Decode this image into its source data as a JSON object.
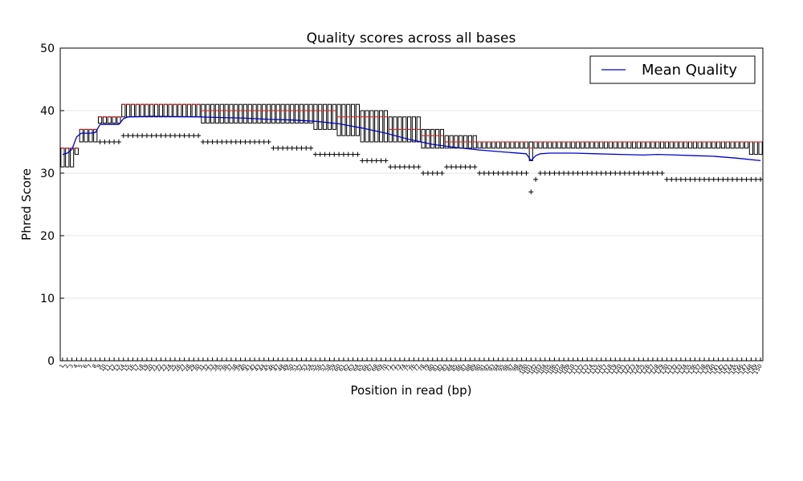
{
  "chart_data": {
    "type": "boxplot",
    "title": "Quality scores across all bases",
    "xlabel": "Position in read (bp)",
    "ylabel": "Phred Score",
    "ylim": [
      0,
      50
    ],
    "yticks": [
      0,
      10,
      20,
      30,
      40,
      50
    ],
    "grid": true,
    "legend": {
      "placement": "top-right",
      "entries": [
        "Mean Quality"
      ]
    },
    "colors": {
      "mean": "#0000cc",
      "median": "#ff0000",
      "box": "#000000"
    },
    "positions": [
      1,
      2,
      3,
      4,
      5,
      6,
      7,
      8,
      9,
      10,
      11,
      12,
      13,
      14,
      15,
      16,
      17,
      18,
      19,
      20,
      21,
      22,
      23,
      24,
      25,
      26,
      27,
      28,
      29,
      30,
      31,
      32,
      33,
      34,
      35,
      36,
      37,
      38,
      39,
      40,
      41,
      42,
      43,
      44,
      45,
      46,
      47,
      48,
      49,
      50,
      51,
      52,
      53,
      54,
      55,
      56,
      57,
      58,
      59,
      60,
      61,
      62,
      63,
      64,
      65,
      66,
      67,
      68,
      69,
      70,
      71,
      72,
      73,
      74,
      75,
      76,
      77,
      78,
      79,
      80,
      81,
      82,
      83,
      84,
      85,
      86,
      87,
      88,
      89,
      90,
      91,
      92,
      93,
      94,
      95,
      96,
      97,
      98,
      99,
      100,
      101,
      102,
      103,
      104,
      105,
      106,
      107,
      108,
      109,
      110,
      111,
      112,
      113,
      114,
      115,
      116,
      117,
      118,
      119,
      120,
      121,
      122,
      123,
      124,
      125,
      126,
      127,
      128,
      129,
      130,
      131,
      132,
      133,
      134,
      135,
      136,
      137,
      138,
      139,
      140,
      141,
      142,
      143,
      144,
      145,
      146,
      147,
      148,
      149,
      150
    ],
    "segments": [
      {
        "from": 1,
        "to": 3,
        "q1": 31,
        "median": 34,
        "q3": 34,
        "outlier": null
      },
      {
        "from": 4,
        "to": 4,
        "q1": 33,
        "median": 34,
        "q3": 34,
        "outlier": null
      },
      {
        "from": 5,
        "to": 8,
        "q1": 35,
        "median": 37,
        "q3": 37,
        "outlier": null
      },
      {
        "from": 9,
        "to": 13,
        "q1": 38,
        "median": 39,
        "q3": 39,
        "outlier": 35
      },
      {
        "from": 14,
        "to": 30,
        "q1": 39,
        "median": 41,
        "q3": 41,
        "outlier": 36
      },
      {
        "from": 31,
        "to": 45,
        "q1": 38,
        "median": 40,
        "q3": 41,
        "outlier": 35
      },
      {
        "from": 46,
        "to": 54,
        "q1": 38,
        "median": 40,
        "q3": 41,
        "outlier": 34
      },
      {
        "from": 55,
        "to": 59,
        "q1": 37,
        "median": 40,
        "q3": 41,
        "outlier": 33
      },
      {
        "from": 60,
        "to": 64,
        "q1": 36,
        "median": 39,
        "q3": 41,
        "outlier": 33
      },
      {
        "from": 65,
        "to": 70,
        "q1": 35,
        "median": 39,
        "q3": 40,
        "outlier": 32
      },
      {
        "from": 71,
        "to": 77,
        "q1": 35,
        "median": 37,
        "q3": 39,
        "outlier": 31
      },
      {
        "from": 78,
        "to": 82,
        "q1": 34,
        "median": 36,
        "q3": 37,
        "outlier": 30
      },
      {
        "from": 83,
        "to": 89,
        "q1": 34,
        "median": 35,
        "q3": 36,
        "outlier": 31
      },
      {
        "from": 90,
        "to": 96,
        "q1": 34,
        "median": 35,
        "q3": 35,
        "outlier": 30
      },
      {
        "from": 97,
        "to": 100,
        "q1": 34,
        "median": 35,
        "q3": 35,
        "outlier": 30
      },
      {
        "from": 101,
        "to": 101,
        "q1": 32,
        "median": 34,
        "q3": 35,
        "outlier": 27
      },
      {
        "from": 102,
        "to": 102,
        "q1": 34,
        "median": 35,
        "q3": 35,
        "outlier": 29
      },
      {
        "from": 103,
        "to": 129,
        "q1": 34,
        "median": 35,
        "q3": 35,
        "outlier": 30
      },
      {
        "from": 130,
        "to": 147,
        "q1": 34,
        "median": 35,
        "q3": 35,
        "outlier": 29
      },
      {
        "from": 148,
        "to": 150,
        "q1": 33,
        "median": 35,
        "q3": 35,
        "outlier": 29
      }
    ],
    "mean_curve": [
      [
        1,
        33.0
      ],
      [
        2,
        33.2
      ],
      [
        3,
        33.8
      ],
      [
        4,
        35.8
      ],
      [
        5,
        36.4
      ],
      [
        6,
        36.4
      ],
      [
        7,
        36.4
      ],
      [
        8,
        36.5
      ],
      [
        9,
        37.8
      ],
      [
        10,
        37.8
      ],
      [
        12,
        37.8
      ],
      [
        13,
        37.8
      ],
      [
        14,
        38.7
      ],
      [
        15,
        39.0
      ],
      [
        20,
        39.1
      ],
      [
        30,
        39.0
      ],
      [
        35,
        38.9
      ],
      [
        40,
        38.8
      ],
      [
        45,
        38.6
      ],
      [
        50,
        38.5
      ],
      [
        55,
        38.3
      ],
      [
        60,
        37.9
      ],
      [
        65,
        37.2
      ],
      [
        70,
        36.4
      ],
      [
        75,
        35.4
      ],
      [
        80,
        34.6
      ],
      [
        85,
        34.1
      ],
      [
        90,
        33.7
      ],
      [
        95,
        33.4
      ],
      [
        100,
        33.1
      ],
      [
        101,
        32.0
      ],
      [
        102,
        32.8
      ],
      [
        103,
        33.1
      ],
      [
        105,
        33.2
      ],
      [
        110,
        33.2
      ],
      [
        115,
        33.1
      ],
      [
        120,
        33.0
      ],
      [
        125,
        32.9
      ],
      [
        128,
        33.0
      ],
      [
        132,
        32.9
      ],
      [
        136,
        32.8
      ],
      [
        140,
        32.7
      ],
      [
        145,
        32.4
      ],
      [
        150,
        32.0
      ]
    ]
  }
}
